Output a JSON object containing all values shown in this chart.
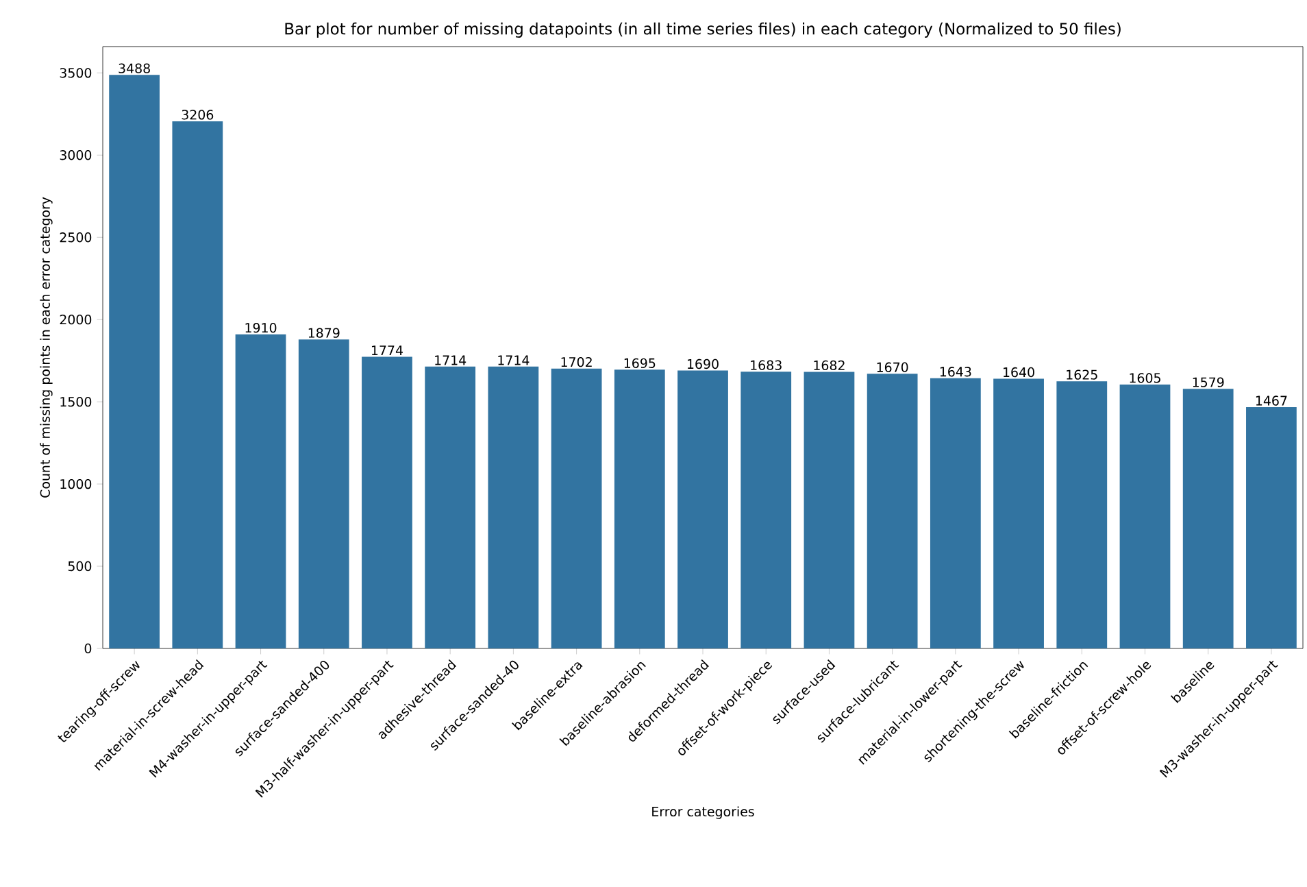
{
  "chart_data": {
    "type": "bar",
    "title": "Bar plot for number of missing datapoints (in all time series files) in each category (Normalized to 50 files)",
    "xlabel": "Error categories",
    "ylabel": "Count of missing points in each error category",
    "categories": [
      "tearing-off-screw",
      "material-in-screw-head",
      "M4-washer-in-upper-part",
      "surface-sanded-400",
      "M3-half-washer-in-upper-part",
      "adhesive-thread",
      "surface-sanded-40",
      "baseline-extra",
      "baseline-abrasion",
      "deformed-thread",
      "offset-of-work-piece",
      "surface-used",
      "surface-lubricant",
      "material-in-lower-part",
      "shortening-the-screw",
      "baseline-friction",
      "offset-of-screw-hole",
      "baseline",
      "M3-washer-in-upper-part"
    ],
    "values": [
      3488,
      3206,
      1910,
      1879,
      1774,
      1714,
      1714,
      1702,
      1695,
      1690,
      1683,
      1682,
      1670,
      1643,
      1640,
      1625,
      1605,
      1579,
      1467
    ],
    "color": "#3274a1",
    "ylim": [
      0,
      3660
    ],
    "yticks": [
      0,
      500,
      1000,
      1500,
      2000,
      2500,
      3000,
      3500
    ],
    "data_labels": true
  }
}
